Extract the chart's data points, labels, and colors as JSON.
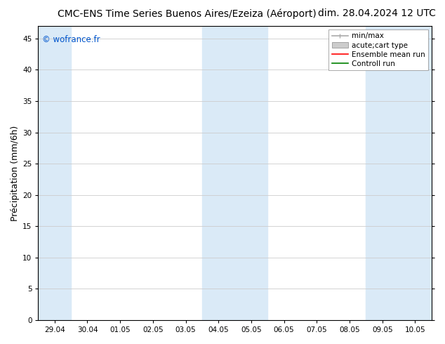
{
  "title_left": "CMC-ENS Time Series Buenos Aires/Ezeiza (Aéroport)",
  "title_right": "dim. 28.04.2024 12 UTC",
  "ylabel": "Précipitation (mm/6h)",
  "ylim": [
    0,
    47
  ],
  "yticks": [
    0,
    5,
    10,
    15,
    20,
    25,
    30,
    35,
    40,
    45
  ],
  "xtick_labels": [
    "29.04",
    "30.04",
    "01.05",
    "02.05",
    "03.05",
    "04.05",
    "05.05",
    "06.05",
    "07.05",
    "08.05",
    "09.05",
    "10.05"
  ],
  "xtick_values": [
    0,
    1,
    2,
    3,
    4,
    5,
    6,
    7,
    8,
    9,
    10,
    11
  ],
  "xlim": [
    -0.5,
    11.5
  ],
  "shaded_bands": [
    {
      "xmin": -0.5,
      "xmax": 0.5,
      "color": "#daeaf7"
    },
    {
      "xmin": 4.5,
      "xmax": 5.5,
      "color": "#daeaf7"
    },
    {
      "xmin": 5.5,
      "xmax": 6.5,
      "color": "#daeaf7"
    },
    {
      "xmin": 9.5,
      "xmax": 10.5,
      "color": "#daeaf7"
    },
    {
      "xmin": 10.5,
      "xmax": 11.5,
      "color": "#daeaf7"
    }
  ],
  "legend_entries": [
    {
      "label": "min/max",
      "color": "#aaaaaa",
      "lw": 1.2
    },
    {
      "label": "acute;cart type",
      "color": "#cccccc",
      "patch": true
    },
    {
      "label": "Ensemble mean run",
      "color": "red",
      "lw": 1.2
    },
    {
      "label": "Controll run",
      "color": "green",
      "lw": 1.2
    }
  ],
  "watermark_text": "© wofrance.fr",
  "watermark_color": "#0055cc",
  "bg_color": "#ffffff",
  "plot_bg_color": "#ffffff",
  "grid_color": "#cccccc",
  "title_fontsize": 10,
  "tick_fontsize": 7.5,
  "ylabel_fontsize": 9,
  "legend_fontsize": 7.5
}
